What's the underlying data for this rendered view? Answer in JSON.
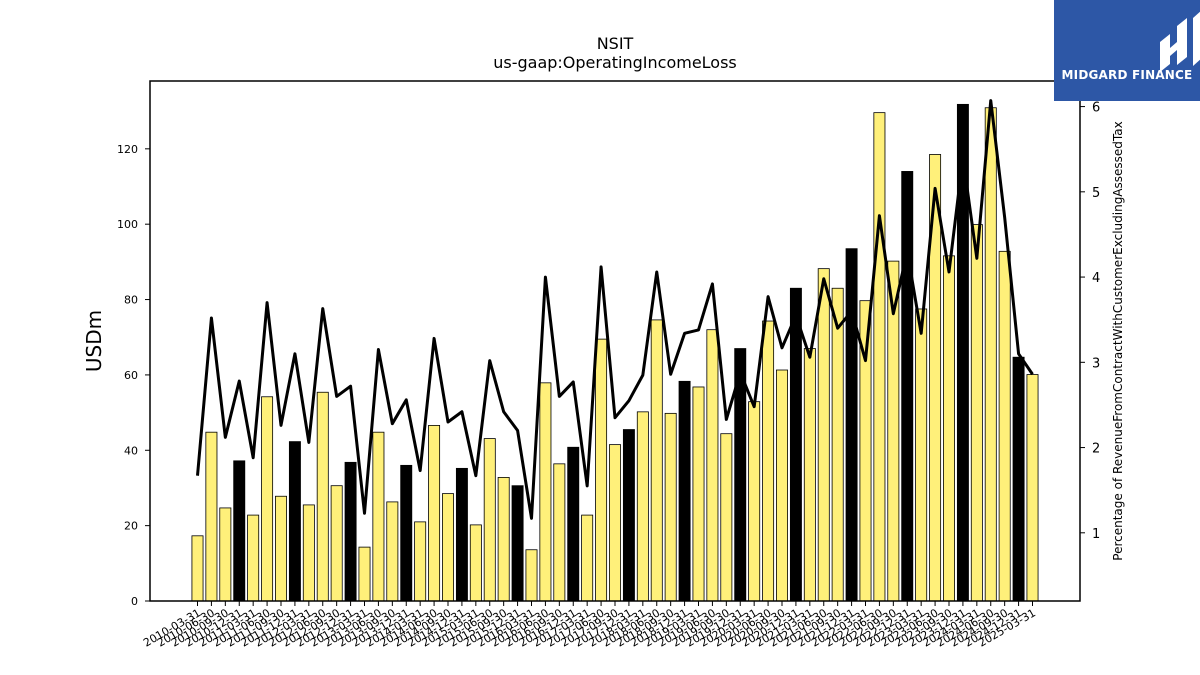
{
  "chart_data": {
    "type": "bar",
    "title": "NSIT",
    "subtitle": "us-gaap:OperatingIncomeLoss",
    "ylabel": "USDm",
    "y2label": "Percentage of RevenueFromContractWithCustomerExcludingAssessedTax",
    "ylim": [
      0,
      138
    ],
    "y2lim": [
      0.2,
      6.3
    ],
    "yticks": [
      0,
      20,
      40,
      60,
      80,
      100,
      120
    ],
    "y2ticks": [
      1,
      2,
      3,
      4,
      5,
      6
    ],
    "colors": {
      "bar": "#fff07a",
      "bar_q4": "#000000",
      "line": "#000000"
    },
    "categories": [
      "2010-03-31",
      "2010-06-30",
      "2010-09-30",
      "2010-12-31",
      "2011-03-31",
      "2011-06-30",
      "2011-09-30",
      "2011-12-31",
      "2012-03-31",
      "2012-06-30",
      "2012-09-30",
      "2012-12-31",
      "2013-03-31",
      "2013-06-30",
      "2013-09-30",
      "2013-12-31",
      "2014-03-31",
      "2014-06-30",
      "2014-09-30",
      "2014-12-31",
      "2015-03-31",
      "2015-06-30",
      "2015-09-30",
      "2015-12-31",
      "2016-03-31",
      "2016-06-30",
      "2016-09-30",
      "2016-12-31",
      "2017-03-31",
      "2017-06-30",
      "2017-09-30",
      "2017-12-31",
      "2018-03-31",
      "2018-06-30",
      "2018-09-30",
      "2018-12-31",
      "2019-03-31",
      "2019-06-30",
      "2019-09-30",
      "2019-12-31",
      "2020-03-31",
      "2020-06-30",
      "2020-09-30",
      "2020-12-31",
      "2021-03-31",
      "2021-06-30",
      "2021-09-30",
      "2021-12-31",
      "2022-03-31",
      "2022-06-30",
      "2022-09-30",
      "2022-12-31",
      "2023-03-31",
      "2023-06-30",
      "2023-09-30",
      "2023-12-31",
      "2024-03-31",
      "2024-06-30",
      "2024-09-30",
      "2024-12-31",
      "2025-03-31"
    ],
    "series": [
      {
        "axis": "left",
        "values": [
          17.3,
          44.8,
          24.7,
          37.2,
          22.8,
          54.2,
          27.8,
          42.3,
          25.5,
          55.4,
          30.6,
          36.8,
          14.3,
          44.8,
          26.3,
          36.0,
          21.0,
          46.6,
          28.5,
          35.2,
          20.2,
          43.1,
          32.8,
          30.6,
          13.6,
          57.9,
          36.4,
          40.8,
          22.8,
          69.5,
          41.5,
          45.5,
          50.2,
          74.6,
          49.8,
          58.3,
          56.8,
          72.0,
          44.4,
          67.0,
          52.9,
          74.3,
          61.3,
          83.0,
          67.0,
          88.2,
          83.0,
          93.5,
          79.7,
          129.6,
          90.2,
          114.0,
          77.5,
          118.5,
          91.6,
          131.8,
          99.9,
          130.9,
          92.8,
          64.7,
          60.1
        ]
      },
      {
        "axis": "right",
        "values": [
          1.67,
          3.52,
          2.12,
          2.78,
          1.88,
          3.7,
          2.26,
          3.1,
          2.06,
          3.63,
          2.6,
          2.72,
          1.23,
          3.15,
          2.28,
          2.56,
          1.73,
          3.28,
          2.3,
          2.42,
          1.67,
          3.02,
          2.42,
          2.2,
          1.17,
          4.0,
          2.6,
          2.77,
          1.55,
          4.12,
          2.35,
          2.55,
          2.85,
          4.06,
          2.86,
          3.34,
          3.38,
          3.92,
          2.33,
          2.88,
          2.48,
          3.77,
          3.17,
          3.55,
          3.06,
          3.98,
          3.4,
          3.6,
          3.02,
          4.72,
          3.57,
          4.3,
          3.34,
          5.04,
          4.06,
          5.4,
          4.22,
          6.07,
          4.7,
          3.1,
          2.86
        ]
      }
    ]
  },
  "logo": {
    "text": "MIDGARD FINANCE"
  }
}
